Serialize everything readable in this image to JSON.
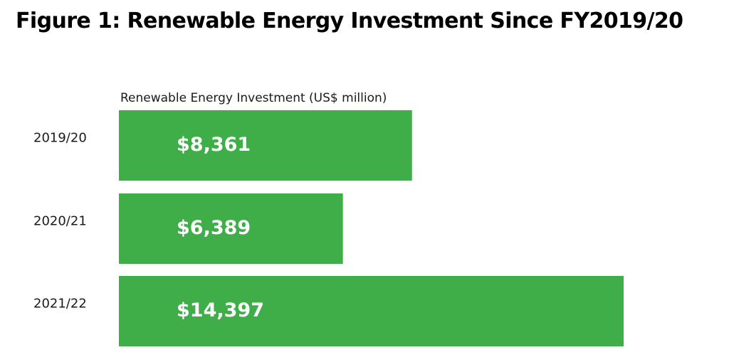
{
  "chart_data": {
    "type": "bar",
    "orientation": "horizontal",
    "title": "Figure 1: Renewable Energy Investment Since FY2019/20",
    "series_label": "Renewable Energy Investment (US$ million)",
    "categories": [
      "2019/20",
      "2020/21",
      "2021/22"
    ],
    "values": [
      8361,
      6389,
      14397
    ],
    "value_labels": [
      "$8,361",
      "$6,389",
      "$14,397"
    ],
    "bar_color": "#3fae49",
    "value_label_color": "#ffffff",
    "grid": false,
    "legend": "none"
  }
}
